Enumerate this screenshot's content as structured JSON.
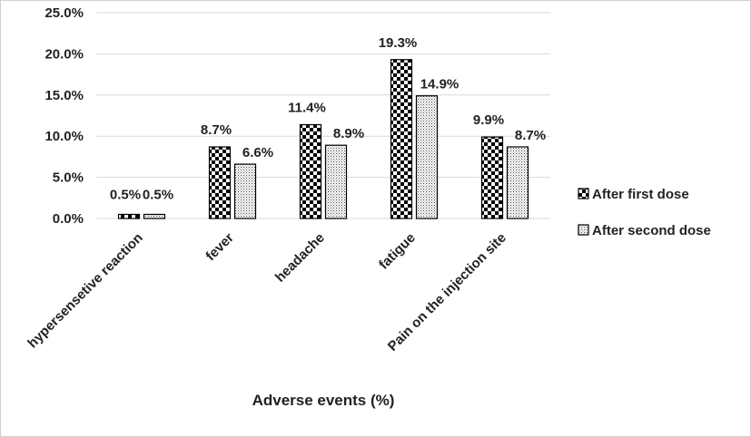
{
  "chart_data": {
    "type": "bar",
    "categories": [
      "hypersensetive reaction",
      "fever",
      "headache",
      "fatigue",
      "Pain on the injection site"
    ],
    "series": [
      {
        "name": "After first dose",
        "values": [
          0.5,
          8.7,
          11.4,
          19.3,
          9.9
        ],
        "labels": [
          "0.5%",
          "8.7%",
          "11.4%",
          "19.3%",
          "9.9%"
        ],
        "pattern": "checkerboard"
      },
      {
        "name": "After second dose",
        "values": [
          0.5,
          6.6,
          8.9,
          14.9,
          8.7
        ],
        "labels": [
          "0.5%",
          "6.6%",
          "8.9%",
          "14.9%",
          "8.7%"
        ],
        "pattern": "dotted"
      }
    ],
    "ylim": [
      0,
      25
    ],
    "yticks": [
      0,
      5,
      10,
      15,
      20,
      25
    ],
    "ytick_labels": [
      "0.0%",
      "5.0%",
      "10.0%",
      "15.0%",
      "20.0%",
      "25.0%"
    ],
    "xlabel": "Adverse events (%)",
    "ylabel": "",
    "title": "",
    "grid": true,
    "legend_position": "right",
    "colors": {
      "bar_stroke": "#000000",
      "pattern_dark": "#000000",
      "pattern_light": "#ffffff",
      "grid": "#d9d9d9",
      "text": "#222222"
    }
  }
}
